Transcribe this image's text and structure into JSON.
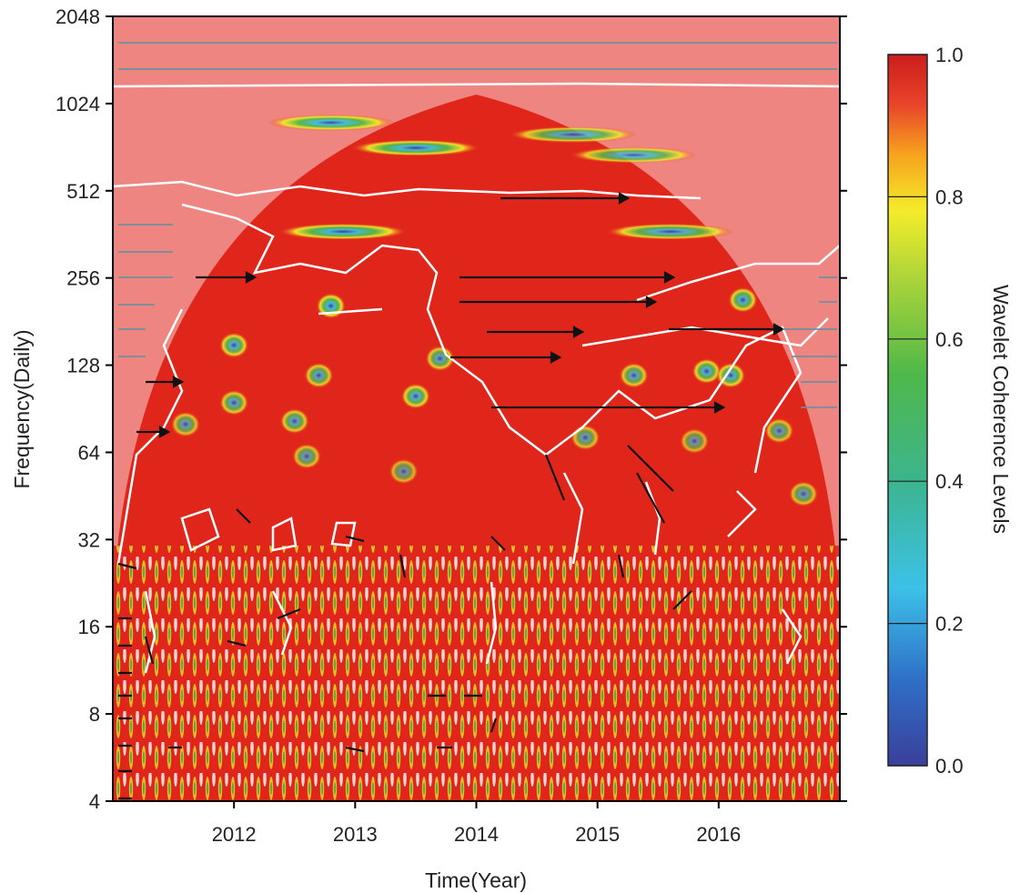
{
  "chart_data": {
    "type": "heatmap",
    "title": "",
    "xlabel": "Time(Year)",
    "ylabel": "Frequency(Daily)",
    "x_ticks": [
      "2012",
      "2013",
      "2014",
      "2015",
      "2016"
    ],
    "x_tick_values": [
      2012,
      2013,
      2014,
      2015,
      2016
    ],
    "xlim": [
      2011.0,
      2017.0
    ],
    "y_ticks": [
      "4",
      "8",
      "16",
      "32",
      "64",
      "128",
      "256",
      "512",
      "1024",
      "2048"
    ],
    "y_tick_values": [
      4,
      8,
      16,
      32,
      64,
      128,
      256,
      512,
      1024,
      2048
    ],
    "ylim": [
      4,
      2048
    ],
    "y_scale": "log2",
    "colorbar": {
      "label": "Wavelet Coherence Levels",
      "ticks": [
        "0.0",
        "0.2",
        "0.4",
        "0.6",
        "0.8",
        "1.0"
      ],
      "tick_values": [
        0.0,
        0.2,
        0.4,
        0.6,
        0.8,
        1.0
      ],
      "range": [
        0.0,
        1.0
      ],
      "colormap": [
        "#3a3f9a",
        "#2f6fc7",
        "#3cc1e8",
        "#4fb84a",
        "#8ccc3a",
        "#f4ec2a",
        "#f7a21e",
        "#e8442a",
        "#cc1d1d"
      ]
    },
    "cone_of_influence_peak": {
      "x": 2014.0,
      "y": 1100
    },
    "low_coherence_patches": [
      {
        "x": 2012.8,
        "y": 880,
        "level": 0.1
      },
      {
        "x": 2014.8,
        "y": 800,
        "level": 0.3
      },
      {
        "x": 2013.5,
        "y": 720,
        "level": 0.1
      },
      {
        "x": 2015.3,
        "y": 680,
        "level": 0.3
      },
      {
        "x": 2012.9,
        "y": 370,
        "level": 0.1
      },
      {
        "x": 2015.6,
        "y": 370,
        "level": 0.2
      },
      {
        "x": 2016.2,
        "y": 215,
        "level": 0.2
      },
      {
        "x": 2012.8,
        "y": 205,
        "level": 0.1
      },
      {
        "x": 2012.0,
        "y": 150,
        "level": 0.2
      },
      {
        "x": 2013.7,
        "y": 135,
        "level": 0.3
      },
      {
        "x": 2012.7,
        "y": 118,
        "level": 0.3
      },
      {
        "x": 2013.5,
        "y": 100,
        "level": 0.2
      },
      {
        "x": 2015.3,
        "y": 118,
        "level": 0.3
      },
      {
        "x": 2015.9,
        "y": 122,
        "level": 0.2
      },
      {
        "x": 2016.1,
        "y": 118,
        "level": 0.2
      },
      {
        "x": 2012.0,
        "y": 95,
        "level": 0.3
      },
      {
        "x": 2012.5,
        "y": 82,
        "level": 0.3
      },
      {
        "x": 2011.6,
        "y": 80,
        "level": 0.4
      },
      {
        "x": 2016.5,
        "y": 76,
        "level": 0.4
      },
      {
        "x": 2014.9,
        "y": 72,
        "level": 0.4
      },
      {
        "x": 2015.8,
        "y": 70,
        "level": 0.5
      },
      {
        "x": 2012.6,
        "y": 62,
        "level": 0.4
      },
      {
        "x": 2013.4,
        "y": 55,
        "level": 0.5
      },
      {
        "x": 2016.7,
        "y": 46,
        "level": 0.4
      }
    ],
    "legend_position": "right",
    "grid": false
  }
}
